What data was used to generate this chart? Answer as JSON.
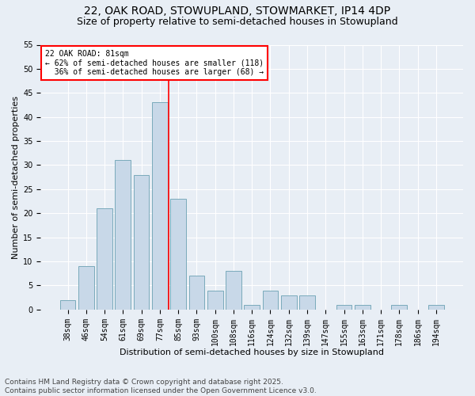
{
  "title1": "22, OAK ROAD, STOWUPLAND, STOWMARKET, IP14 4DP",
  "title2": "Size of property relative to semi-detached houses in Stowupland",
  "xlabel": "Distribution of semi-detached houses by size in Stowupland",
  "ylabel": "Number of semi-detached properties",
  "categories": [
    "38sqm",
    "46sqm",
    "54sqm",
    "61sqm",
    "69sqm",
    "77sqm",
    "85sqm",
    "93sqm",
    "100sqm",
    "108sqm",
    "116sqm",
    "124sqm",
    "132sqm",
    "139sqm",
    "147sqm",
    "155sqm",
    "163sqm",
    "171sqm",
    "178sqm",
    "186sqm",
    "194sqm"
  ],
  "values": [
    2,
    9,
    21,
    31,
    28,
    43,
    23,
    7,
    4,
    8,
    1,
    4,
    3,
    3,
    0,
    1,
    1,
    0,
    1,
    0,
    1
  ],
  "bar_color": "#c8d8e8",
  "bar_edge_color": "#7aaabb",
  "vline_x": 5.5,
  "vline_color": "red",
  "annotation_line1": "22 OAK ROAD: 81sqm",
  "annotation_line2": "← 62% of semi-detached houses are smaller (118)",
  "annotation_line3": "  36% of semi-detached houses are larger (68) →",
  "annotation_box_color": "white",
  "annotation_box_edge": "red",
  "ylim": [
    0,
    55
  ],
  "yticks": [
    0,
    5,
    10,
    15,
    20,
    25,
    30,
    35,
    40,
    45,
    50,
    55
  ],
  "background_color": "#e8eef5",
  "footer": "Contains HM Land Registry data © Crown copyright and database right 2025.\nContains public sector information licensed under the Open Government Licence v3.0.",
  "title_fontsize": 10,
  "subtitle_fontsize": 9,
  "axis_label_fontsize": 8,
  "tick_fontsize": 7,
  "annotation_fontsize": 7,
  "footer_fontsize": 6.5
}
